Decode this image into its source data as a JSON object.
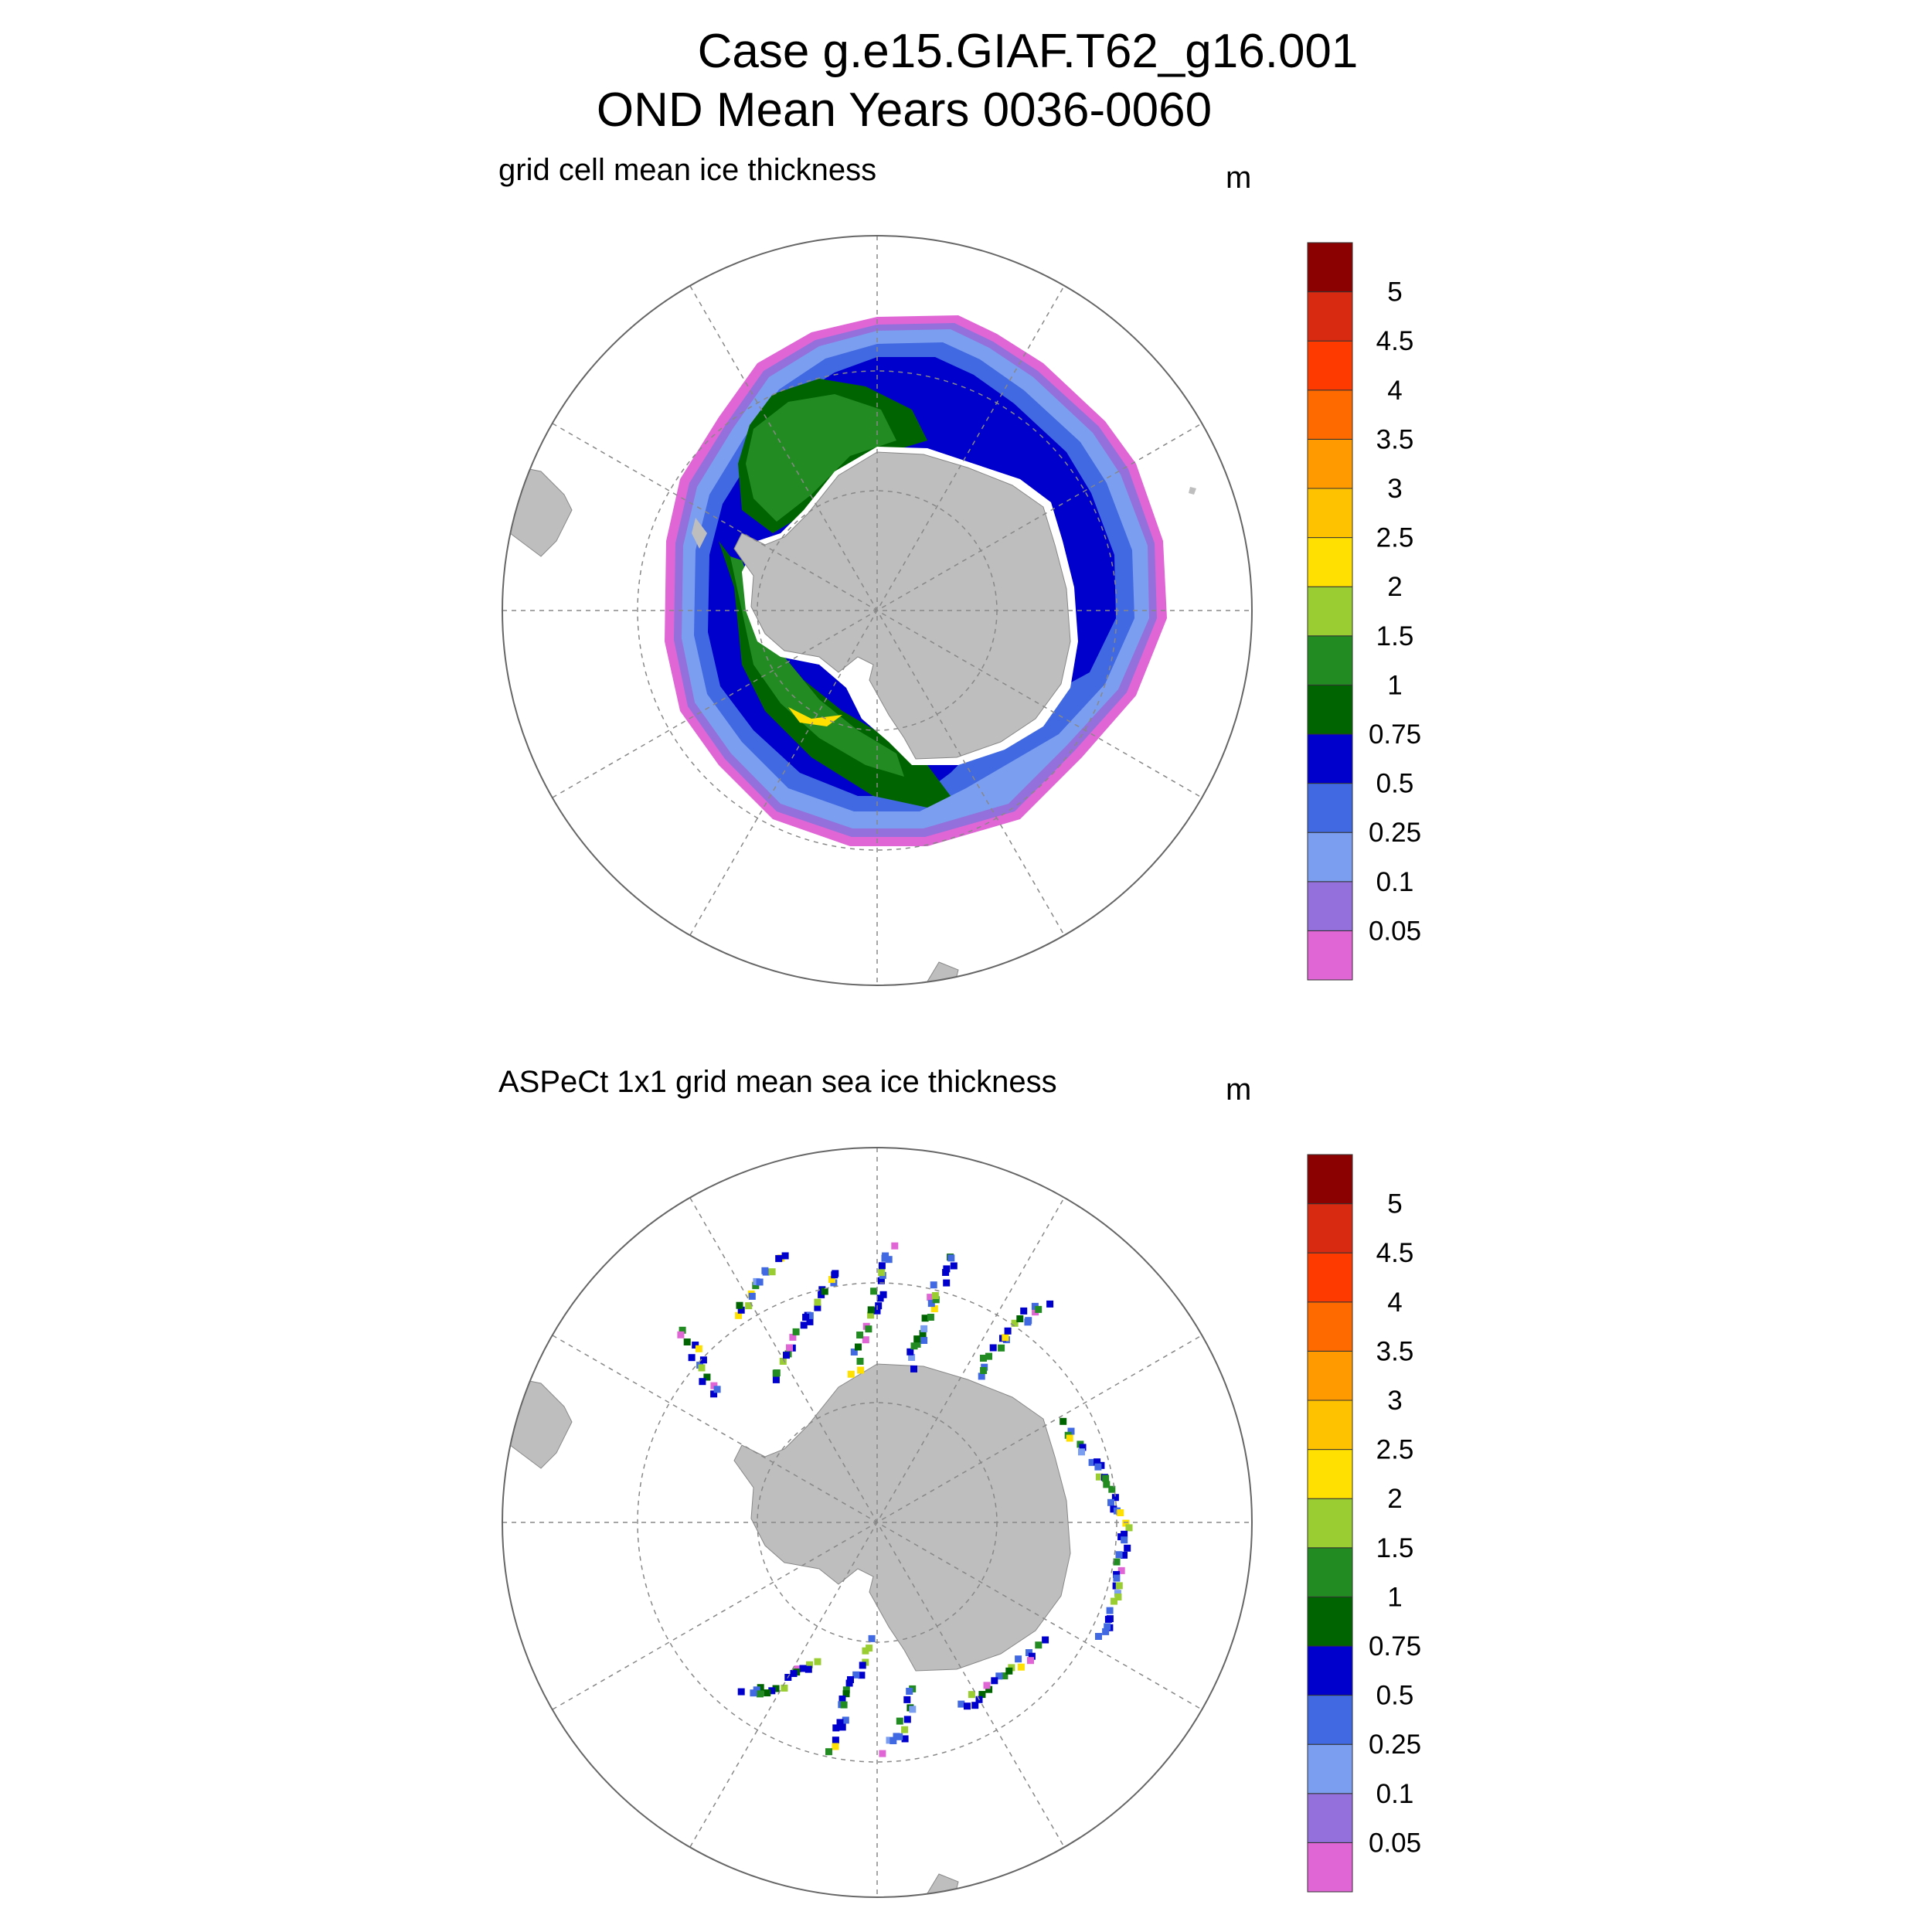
{
  "title": {
    "line1": "Case g.e15.GIAF.T62_g16.001",
    "line2": "OND Mean   Years 0036-0060"
  },
  "panels": [
    {
      "id": "model",
      "label": "grid cell mean ice thickness",
      "units": "m",
      "field": "continuous"
    },
    {
      "id": "obs",
      "label": "ASPeCt 1x1 grid mean sea ice thickness",
      "units": "m",
      "field": "sparse"
    }
  ],
  "colorbar": {
    "levels": [
      "0.05",
      "0.1",
      "0.25",
      "0.5",
      "0.75",
      "1",
      "1.5",
      "2",
      "2.5",
      "3",
      "3.5",
      "4",
      "4.5",
      "5"
    ],
    "colors": [
      "#e066d6",
      "#9370db",
      "#7b9ef0",
      "#4169e1",
      "#0000cd",
      "#006400",
      "#228b22",
      "#9acd32",
      "#ffe000",
      "#ffc200",
      "#ff9a00",
      "#ff6a00",
      "#ff3a00",
      "#d82a10",
      "#8b0000"
    ]
  },
  "map": {
    "land_color": "#bebebe",
    "ocean_color": "#ffffff",
    "grid_style": "dashed"
  }
}
